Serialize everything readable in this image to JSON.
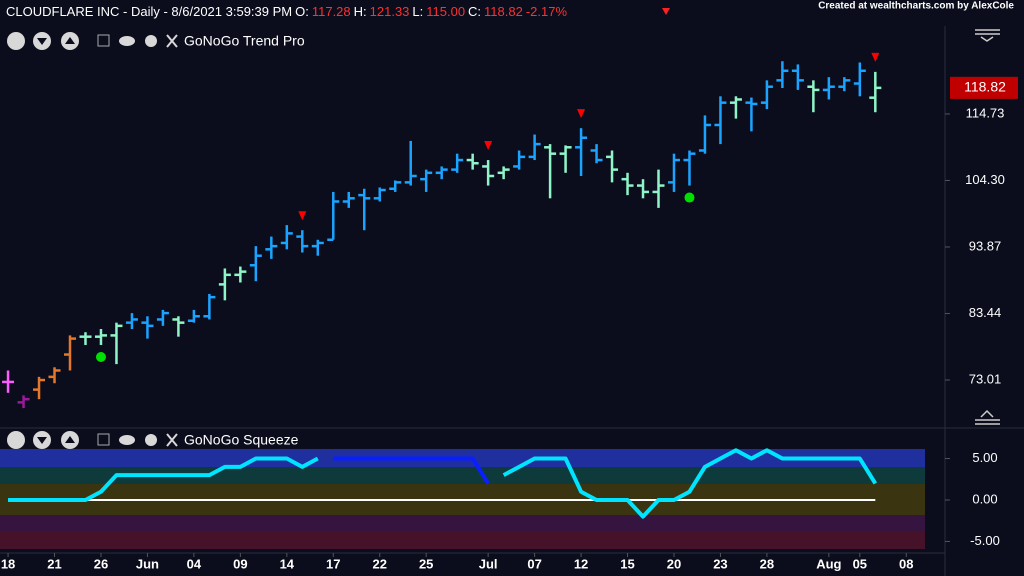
{
  "header": {
    "parts": [
      "CLOUDFLARE INC - Daily - 8/6/2021 3:59:39 PM",
      "O:",
      "117.28",
      "H:",
      "121.33",
      "L:",
      "115.00",
      "C:",
      "118.82",
      "-2.17%"
    ],
    "credit": "Created at wealthcharts.com by AlexCole"
  },
  "chart_data": [
    {
      "type": "ohlc",
      "title": "GoNoGo Trend Pro",
      "xlim": [
        -0.52,
        60.5
      ],
      "ylim": [
        65.95,
        132.6
      ],
      "xticks": [
        {
          "value": 0,
          "label": "18"
        },
        {
          "value": 3,
          "label": "21"
        },
        {
          "value": 6,
          "label": "26"
        },
        {
          "value": 9,
          "label": "Jun"
        },
        {
          "value": 12,
          "label": "04"
        },
        {
          "value": 15,
          "label": "09"
        },
        {
          "value": 18,
          "label": "14"
        },
        {
          "value": 21,
          "label": "17"
        },
        {
          "value": 24,
          "label": "22"
        },
        {
          "value": 27,
          "label": "25"
        },
        {
          "value": 31,
          "label": "Jul"
        },
        {
          "value": 34,
          "label": "07"
        },
        {
          "value": 37,
          "label": "12"
        },
        {
          "value": 40,
          "label": "15"
        },
        {
          "value": 43,
          "label": "20"
        },
        {
          "value": 46,
          "label": "23"
        },
        {
          "value": 49,
          "label": "28"
        },
        {
          "value": 53,
          "label": "Aug"
        },
        {
          "value": 55,
          "label": "05"
        },
        {
          "value": 58,
          "label": "08"
        }
      ],
      "yticks": [
        114.73,
        {
          "value": 104.3,
          "label": "104.30"
        },
        93.87,
        83.44,
        73.01
      ],
      "last_price": 118.82,
      "last_price_color": "#c00000",
      "ohlc": [
        [
          72.7,
          74.5,
          71,
          72.7
        ],
        [
          69.5,
          70.6,
          68.6,
          70
        ],
        [
          71.5,
          73.5,
          70,
          73
        ],
        [
          73.5,
          75,
          72.5,
          74.5
        ],
        [
          77,
          80,
          74.5,
          79.5
        ],
        [
          79.8,
          80.5,
          78.5,
          79.8
        ],
        [
          79.8,
          81,
          78.5,
          80
        ],
        [
          80,
          82,
          75.5,
          81.5
        ],
        [
          82,
          83.5,
          81,
          82.5
        ],
        [
          82,
          83,
          79.5,
          81.5
        ],
        [
          82.5,
          84,
          81.5,
          83.5
        ],
        [
          82.5,
          83,
          79.8,
          82
        ],
        [
          82.3,
          84,
          82,
          83
        ],
        [
          83,
          86.5,
          82.5,
          86
        ],
        [
          88,
          90.5,
          85.5,
          89.5
        ],
        [
          89.5,
          90.8,
          88.3,
          90
        ],
        [
          91,
          94,
          88.5,
          92.5
        ],
        [
          93.5,
          95.5,
          92,
          94
        ],
        [
          94.5,
          97.3,
          93.5,
          96
        ],
        [
          95.5,
          96.5,
          93,
          94
        ],
        [
          94,
          95,
          92.5,
          94.5
        ],
        [
          95,
          102.5,
          95,
          101
        ],
        [
          101,
          102.5,
          100,
          101.5
        ],
        [
          102,
          103,
          96.5,
          101.5
        ],
        [
          101.5,
          103.2,
          101,
          102.8
        ],
        [
          103,
          104.3,
          102.5,
          104
        ],
        [
          104,
          110.5,
          103.5,
          105
        ],
        [
          104.5,
          106,
          102.5,
          105.5
        ],
        [
          105.5,
          106.5,
          104.5,
          106
        ],
        [
          106,
          108.5,
          105.5,
          107.5
        ],
        [
          107.5,
          108.5,
          106,
          107
        ],
        [
          106.5,
          107.5,
          103.5,
          105
        ],
        [
          105.5,
          106.5,
          104.5,
          106
        ],
        [
          106.5,
          109,
          106,
          108
        ],
        [
          108,
          111.5,
          107.5,
          110
        ],
        [
          109.5,
          110,
          101.5,
          108.5
        ],
        [
          108.5,
          109.8,
          105.5,
          109.5
        ],
        [
          109.5,
          112.5,
          105,
          111
        ],
        [
          109,
          110,
          107,
          107.5
        ],
        [
          108,
          109,
          104,
          106
        ],
        [
          104.5,
          105.5,
          102,
          103.5
        ],
        [
          103.5,
          104.5,
          101.5,
          102.5
        ],
        [
          102.5,
          106,
          100,
          103.5
        ],
        [
          104,
          108.5,
          102.5,
          107.5
        ],
        [
          107.5,
          109,
          103.5,
          108.5
        ],
        [
          109,
          114.5,
          108.5,
          113
        ],
        [
          113,
          117.5,
          110,
          116.5
        ],
        [
          116.5,
          117.5,
          114,
          117
        ],
        [
          116.5,
          117.3,
          112,
          116.3
        ],
        [
          116.5,
          120,
          115.5,
          119
        ],
        [
          120,
          123,
          118.8,
          121.5
        ],
        [
          121.5,
          122.5,
          118.5,
          120
        ],
        [
          119,
          120,
          115,
          118.5
        ],
        [
          118.5,
          120.5,
          117,
          119
        ],
        [
          119,
          120.5,
          118.3,
          120
        ],
        [
          119.5,
          122.8,
          117.5,
          121.5
        ],
        [
          117.28,
          121.33,
          115,
          118.82
        ]
      ],
      "bar_colors": [
        "#ff5cff",
        "#9a1a9a",
        "#e3782b",
        "#e3782b",
        "#e3782b",
        "#8ff5c8",
        "#8ff5c8",
        "#8ff5c8",
        "#1aa3ff",
        "#1aa3ff",
        "#1aa3ff",
        "#8ff5c8",
        "#1aa3ff",
        "#1aa3ff",
        "#8ff5c8",
        "#8ff5c8",
        "#1aa3ff",
        "#1aa3ff",
        "#1aa3ff",
        "#1aa3ff",
        "#1aa3ff",
        "#1aa3ff",
        "#1aa3ff",
        "#1aa3ff",
        "#1aa3ff",
        "#1aa3ff",
        "#1aa3ff",
        "#1aa3ff",
        "#1aa3ff",
        "#1aa3ff",
        "#8ff5c8",
        "#8ff5c8",
        "#8ff5c8",
        "#1aa3ff",
        "#1aa3ff",
        "#8ff5c8",
        "#8ff5c8",
        "#1aa3ff",
        "#1aa3ff",
        "#8ff5c8",
        "#8ff5c8",
        "#8ff5c8",
        "#8ff5c8",
        "#1aa3ff",
        "#1aa3ff",
        "#1aa3ff",
        "#1aa3ff",
        "#8ff5c8",
        "#1aa3ff",
        "#1aa3ff",
        "#1aa3ff",
        "#1aa3ff",
        "#8ff5c8",
        "#1aa3ff",
        "#1aa3ff",
        "#1aa3ff",
        "#8ff5c8"
      ],
      "sell_markers": {
        "color": "#ff0000",
        "bars": [
          19,
          31,
          37,
          56
        ]
      },
      "buy_markers": {
        "color": "#00e000",
        "bars": [
          6,
          44
        ]
      }
    },
    {
      "type": "line",
      "title": "GoNoGo Squeeze",
      "xlim": [
        -0.52,
        60.5
      ],
      "ylim": [
        -6.27,
        6.27
      ],
      "yticks": [
        {
          "value": 5,
          "label": "5.00"
        },
        {
          "value": 0,
          "label": "0.00"
        },
        {
          "value": -5,
          "label": "-5.00"
        }
      ],
      "series": [
        {
          "color": "#00e5ff",
          "values": [
            0,
            0,
            0,
            0,
            0,
            0,
            1,
            3,
            3,
            3,
            3,
            3,
            3,
            3,
            4,
            4,
            5,
            5,
            5,
            4,
            5,
            null,
            null,
            null,
            null,
            null,
            null,
            null,
            null,
            null,
            null,
            null,
            3,
            4,
            5,
            5,
            5,
            1,
            0,
            0,
            0,
            -2,
            0,
            0,
            1,
            4,
            5,
            6,
            5,
            6,
            5,
            5,
            5,
            5,
            5,
            5,
            2
          ]
        },
        {
          "color": "#0a1fff",
          "values": [
            null,
            null,
            null,
            null,
            null,
            null,
            null,
            null,
            null,
            null,
            null,
            null,
            null,
            null,
            null,
            null,
            null,
            null,
            null,
            null,
            null,
            5,
            5,
            5,
            5,
            5,
            5,
            5,
            5,
            5,
            5,
            2,
            null,
            null,
            null,
            null,
            null,
            null,
            null,
            null,
            null,
            null,
            null,
            null,
            null,
            null,
            null,
            null,
            null,
            null,
            null,
            null,
            null,
            null,
            null,
            null,
            null
          ]
        }
      ]
    }
  ]
}
